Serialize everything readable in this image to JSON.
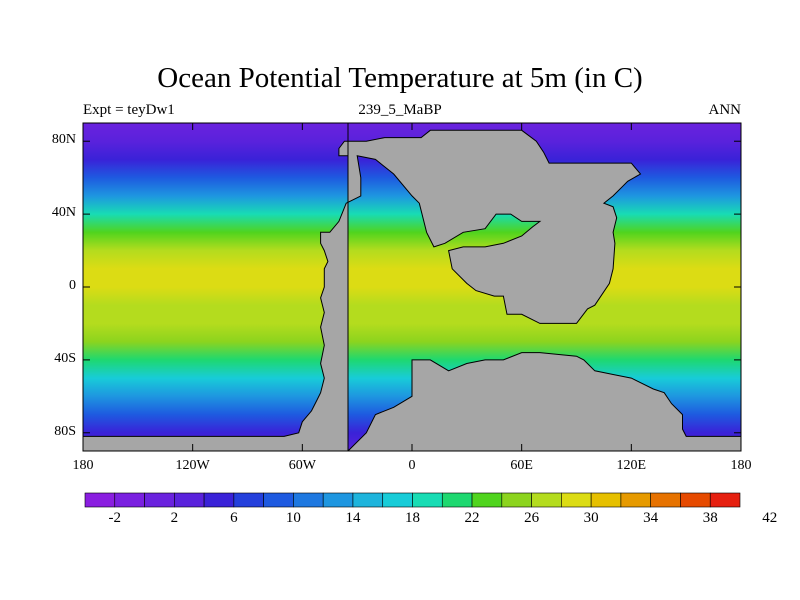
{
  "header": {
    "title": "Ocean Potential Temperature at 5m (in C)",
    "left": "Expt = teyDw1",
    "center": "239_5_MaBP",
    "right": "ANN"
  },
  "colors": {
    "land": "#a6a6a6",
    "ramp": [
      "#8a1ee0",
      "#7a20e0",
      "#6a22de",
      "#5a22dc",
      "#3a22d8",
      "#2440dc",
      "#1e5ae0",
      "#1e78e0",
      "#1e96e0",
      "#1eb4dc",
      "#18ccd8",
      "#18dcb4",
      "#1ed870",
      "#50d41e",
      "#8cd41e",
      "#b4dc1e",
      "#dcdc14",
      "#e6c000",
      "#e69a00",
      "#e67200",
      "#e64a00",
      "#e62010"
    ]
  },
  "chart_data": {
    "type": "heatmap",
    "title": "Ocean Potential Temperature at 5m (in C)",
    "x_ticks": [
      "180",
      "120W",
      "60W",
      "0",
      "60E",
      "120E",
      "180"
    ],
    "x_tick_values": [
      -180,
      -120,
      -60,
      0,
      60,
      120,
      180
    ],
    "y_ticks": [
      "80N",
      "40N",
      "0",
      "40S",
      "80S"
    ],
    "y_tick_values": [
      80,
      40,
      0,
      -40,
      -80
    ],
    "xlim": [
      -180,
      180
    ],
    "ylim": [
      -90,
      90
    ],
    "colorbar": {
      "levels": [
        -4,
        -2,
        0,
        2,
        4,
        6,
        8,
        10,
        12,
        14,
        16,
        18,
        20,
        22,
        24,
        26,
        28,
        30,
        32,
        34,
        36,
        38,
        40,
        42
      ],
      "labels": [
        "-2",
        "2",
        "6",
        "10",
        "14",
        "18",
        "22",
        "26",
        "30",
        "34",
        "38",
        "42"
      ],
      "label_values": [
        -2,
        2,
        6,
        10,
        14,
        18,
        22,
        26,
        30,
        34,
        38,
        42
      ]
    },
    "field_profile_lat_deg": [
      -90,
      -80,
      -70,
      -60,
      -50,
      -40,
      -30,
      -20,
      -10,
      0,
      10,
      20,
      30,
      40,
      50,
      60,
      70,
      80,
      90
    ],
    "field_profile_temp_c": [
      3,
      4,
      8,
      12,
      16,
      20,
      24,
      26,
      27,
      28,
      28,
      27,
      23,
      18,
      12,
      8,
      5,
      2,
      1
    ],
    "land_outline_lonlat": [
      [
        -35,
        90
      ],
      [
        -35,
        72
      ],
      [
        -40,
        72
      ],
      [
        -40,
        76
      ],
      [
        -37,
        80
      ],
      [
        -25,
        80
      ],
      [
        -15,
        82
      ],
      [
        0,
        82
      ],
      [
        5,
        82
      ],
      [
        10,
        86
      ],
      [
        60,
        86
      ],
      [
        68,
        80
      ],
      [
        72,
        74
      ],
      [
        75,
        68
      ],
      [
        110,
        68
      ],
      [
        120,
        68
      ],
      [
        125,
        62
      ],
      [
        118,
        58
      ],
      [
        115,
        55
      ],
      [
        110,
        50
      ],
      [
        105,
        46
      ],
      [
        110,
        44
      ],
      [
        112,
        38
      ],
      [
        110,
        30
      ],
      [
        111,
        24
      ],
      [
        110,
        10
      ],
      [
        108,
        2
      ],
      [
        100,
        -10
      ],
      [
        96,
        -12
      ],
      [
        90,
        -20
      ],
      [
        85,
        -20
      ],
      [
        70,
        -20
      ],
      [
        60,
        -15
      ],
      [
        52,
        -15
      ],
      [
        50,
        -5
      ],
      [
        45,
        -5
      ],
      [
        35,
        -2
      ],
      [
        30,
        2
      ],
      [
        22,
        10
      ],
      [
        20,
        20
      ],
      [
        28,
        22
      ],
      [
        40,
        22
      ],
      [
        50,
        24
      ],
      [
        60,
        28
      ],
      [
        66,
        33
      ],
      [
        70,
        36
      ],
      [
        60,
        36
      ],
      [
        54,
        40
      ],
      [
        46,
        40
      ],
      [
        40,
        32
      ],
      [
        28,
        30
      ],
      [
        18,
        24
      ],
      [
        12,
        22
      ],
      [
        8,
        30
      ],
      [
        4,
        46
      ],
      [
        0,
        50
      ],
      [
        -10,
        62
      ],
      [
        -20,
        70
      ],
      [
        -30,
        72
      ],
      [
        -28,
        60
      ],
      [
        -28,
        50
      ],
      [
        -36,
        46
      ],
      [
        -40,
        36
      ],
      [
        -45,
        30
      ],
      [
        -50,
        30
      ],
      [
        -50,
        24
      ],
      [
        -48,
        20
      ],
      [
        -46,
        14
      ],
      [
        -48,
        10
      ],
      [
        -48,
        0
      ],
      [
        -50,
        -6
      ],
      [
        -48,
        -14
      ],
      [
        -50,
        -22
      ],
      [
        -48,
        -32
      ],
      [
        -50,
        -42
      ],
      [
        -48,
        -50
      ],
      [
        -50,
        -58
      ],
      [
        -52,
        -62
      ],
      [
        -55,
        -68
      ],
      [
        -60,
        -74
      ],
      [
        -62,
        -80
      ],
      [
        -70,
        -82
      ],
      [
        -100,
        -82
      ],
      [
        -180,
        -82
      ],
      [
        -180,
        -90
      ],
      [
        180,
        -90
      ],
      [
        180,
        -82
      ],
      [
        150,
        -82
      ],
      [
        148,
        -78
      ],
      [
        148,
        -70
      ],
      [
        142,
        -64
      ],
      [
        138,
        -58
      ],
      [
        132,
        -56
      ],
      [
        120,
        -50
      ],
      [
        110,
        -48
      ],
      [
        100,
        -46
      ],
      [
        94,
        -40
      ],
      [
        90,
        -38
      ],
      [
        70,
        -36
      ],
      [
        60,
        -36
      ],
      [
        50,
        -40
      ],
      [
        40,
        -40
      ],
      [
        30,
        -42
      ],
      [
        20,
        -46
      ],
      [
        10,
        -40
      ],
      [
        0,
        -40
      ],
      [
        0,
        -60
      ],
      [
        -10,
        -66
      ],
      [
        -20,
        -70
      ],
      [
        -25,
        -80
      ],
      [
        -35,
        -90
      ]
    ]
  }
}
